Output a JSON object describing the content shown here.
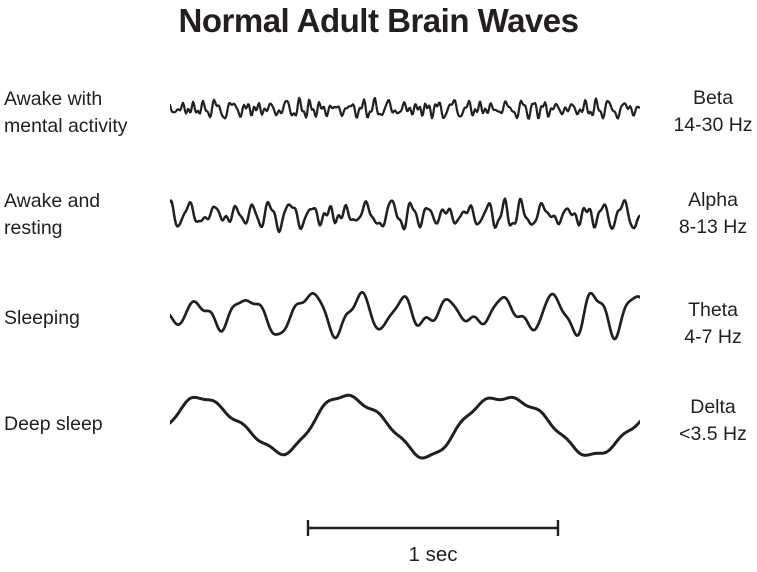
{
  "title": "Normal Adult Brain Waves",
  "rows": [
    {
      "state": "Awake with\nmental activity",
      "band": "Beta",
      "freq": "14-30 Hz",
      "wave": {
        "cycles": 36,
        "amp": 11,
        "h2": 0.45,
        "h3": 0.25,
        "h3f": 2.6,
        "wobble": 1.1,
        "env": 0.45,
        "seed": 11
      }
    },
    {
      "state": "Awake and\nresting",
      "band": "Alpha",
      "freq": "8-13 Hz",
      "wave": {
        "cycles": 24,
        "amp": 17,
        "h2": 0.35,
        "h3": 0.15,
        "h3f": 2.8,
        "wobble": 1.0,
        "env": 0.4,
        "seed": 23
      }
    },
    {
      "state": "Sleeping",
      "band": "Theta",
      "freq": "4-7 Hz",
      "wave": {
        "cycles": 9.6,
        "amp": 26,
        "h2": 0.3,
        "h3": 0.12,
        "h3f": 3.0,
        "wobble": 0.9,
        "env": 0.35,
        "seed": 37
      }
    },
    {
      "state": "Deep sleep",
      "band": "Delta",
      "freq": "<3.5 Hz",
      "wave": {
        "cycles": 2.9,
        "amp": 34,
        "h2": 0.15,
        "h3": 0.07,
        "h3f": 6.0,
        "wobble": 0.5,
        "env": 0.2,
        "seed": 53
      }
    }
  ],
  "scale_bar": {
    "label": "1 sec",
    "seconds": 1
  },
  "colors": {
    "ink": "#231f20",
    "background": "#ffffff"
  }
}
